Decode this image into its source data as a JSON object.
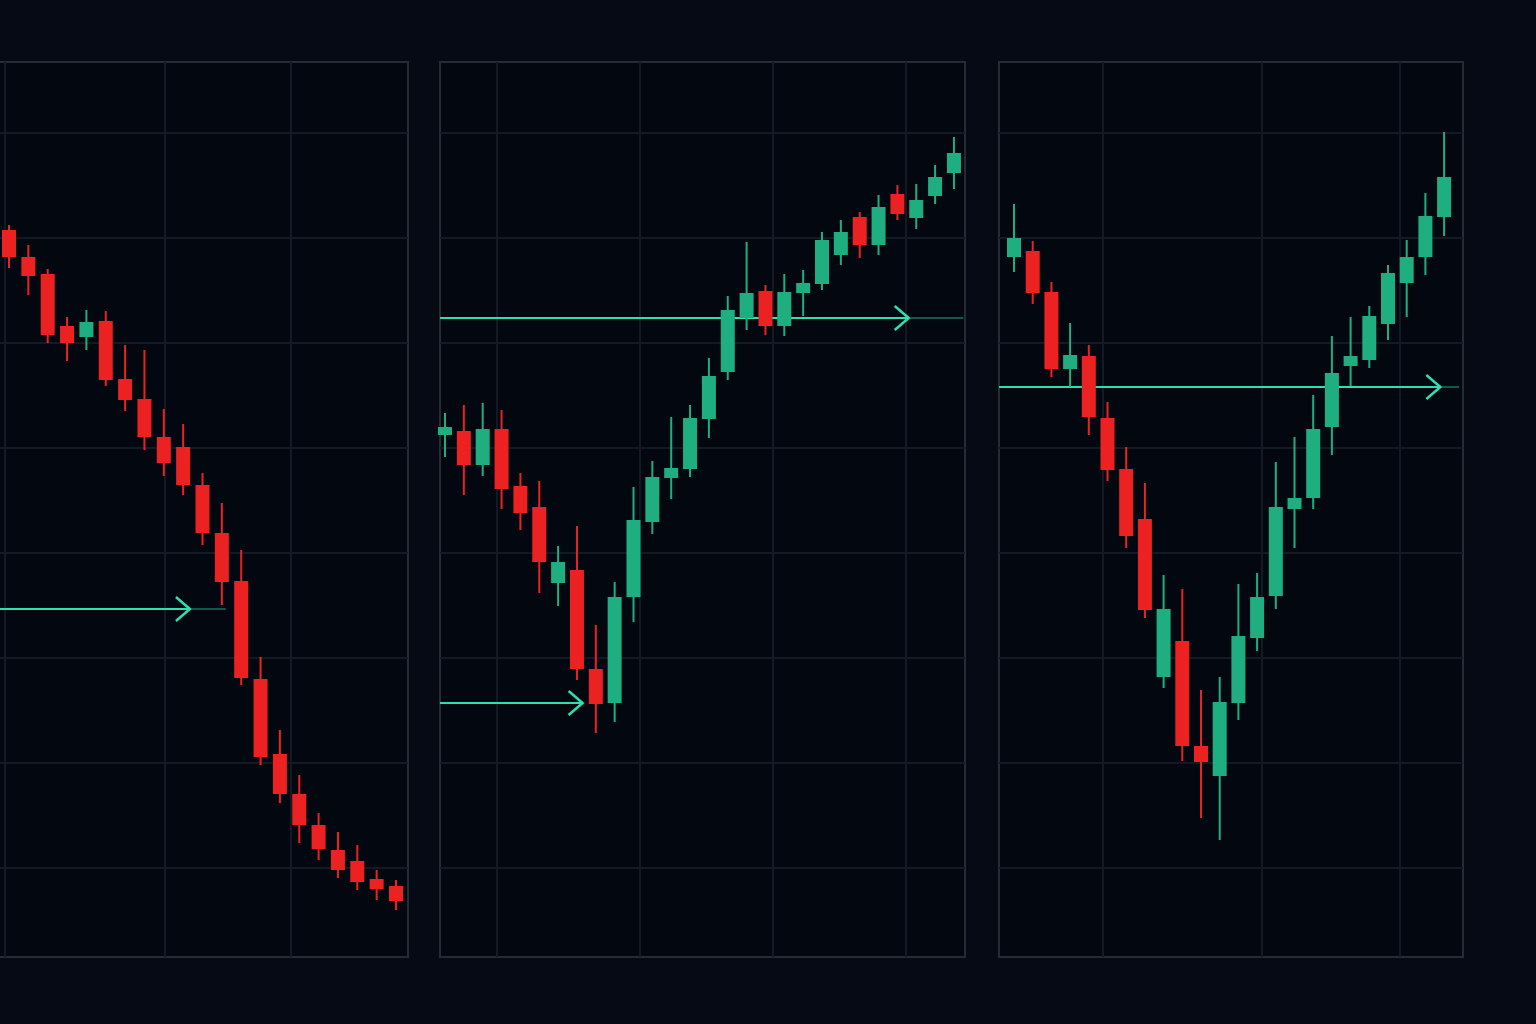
{
  "colors": {
    "background": "#050a14",
    "grid": "#131a25",
    "panel_border": "#262c36",
    "up": "#1fae80",
    "down": "#ec2222",
    "arrow": "#2de0b0"
  },
  "chart_data": [
    {
      "type": "candlestick",
      "title": "",
      "xlabel": "",
      "ylabel": "",
      "ylim": [
        4.3,
        93.8
      ],
      "xlim": [
        -0.47,
        20.6
      ],
      "grid": true,
      "candles": [
        [
          77.0,
          77.5,
          73.2,
          74.3
        ],
        [
          74.3,
          75.5,
          70.5,
          72.4
        ],
        [
          72.6,
          73.1,
          65.7,
          66.5
        ],
        [
          67.4,
          68.3,
          63.9,
          65.7
        ],
        [
          66.3,
          69.0,
          65.0,
          67.8
        ],
        [
          67.9,
          68.9,
          61.4,
          62.0
        ],
        [
          62.1,
          65.5,
          58.9,
          60.0
        ],
        [
          60.1,
          65.0,
          55.0,
          56.3
        ],
        [
          56.3,
          59.1,
          52.4,
          53.7
        ],
        [
          55.3,
          57.6,
          50.5,
          51.5
        ],
        [
          51.5,
          52.7,
          45.5,
          46.7
        ],
        [
          46.7,
          49.7,
          39.5,
          41.8
        ],
        [
          41.9,
          45.0,
          31.5,
          32.2
        ],
        [
          32.1,
          34.3,
          23.5,
          24.3
        ],
        [
          24.6,
          27.0,
          19.7,
          20.6
        ],
        [
          20.6,
          22.5,
          15.7,
          17.5
        ],
        [
          17.5,
          18.7,
          14.0,
          15.1
        ],
        [
          15.0,
          16.8,
          12.2,
          13.0
        ],
        [
          13.9,
          15.5,
          11.0,
          11.8
        ],
        [
          12.1,
          13.0,
          10.0,
          11.1
        ],
        [
          11.4,
          12.0,
          9.0,
          9.9
        ]
      ],
      "arrows": [
        {
          "level": 39.1,
          "from_index": -0.47,
          "head_index": 9.35,
          "to_index": 11.2
        }
      ]
    },
    {
      "type": "candlestick",
      "title": "",
      "xlabel": "",
      "ylabel": "",
      "ylim": [
        4.3,
        93.8
      ],
      "xlim": [
        -0.27,
        27.6
      ],
      "grid": true,
      "candles": [
        [
          56.5,
          58.7,
          54.3,
          57.3
        ],
        [
          56.9,
          59.5,
          50.5,
          53.5
        ],
        [
          53.5,
          59.7,
          52.4,
          57.1
        ],
        [
          57.1,
          59.0,
          49.1,
          51.1
        ],
        [
          51.4,
          52.7,
          47.0,
          48.7
        ],
        [
          49.3,
          51.9,
          40.7,
          43.8
        ],
        [
          41.7,
          45.4,
          39.4,
          43.8
        ],
        [
          43.0,
          47.4,
          32.0,
          33.1
        ],
        [
          33.1,
          37.5,
          26.7,
          29.6
        ],
        [
          29.7,
          41.8,
          27.8,
          40.3
        ],
        [
          40.3,
          51.3,
          37.8,
          48.0
        ],
        [
          47.8,
          53.9,
          46.6,
          52.3
        ],
        [
          52.2,
          58.3,
          50.1,
          53.2
        ],
        [
          53.1,
          59.5,
          52.3,
          58.2
        ],
        [
          58.1,
          64.2,
          56.2,
          62.4
        ],
        [
          62.8,
          70.4,
          62.0,
          69.0
        ],
        [
          68.2,
          75.8,
          67.0,
          70.7
        ],
        [
          70.9,
          71.5,
          66.5,
          67.4
        ],
        [
          67.4,
          72.6,
          66.4,
          70.8
        ],
        [
          70.7,
          73.0,
          68.4,
          71.7
        ],
        [
          71.6,
          76.8,
          71.0,
          76.0
        ],
        [
          74.5,
          78.0,
          73.5,
          76.8
        ],
        [
          78.3,
          78.8,
          74.2,
          75.5
        ],
        [
          75.5,
          80.5,
          74.5,
          79.3
        ],
        [
          80.6,
          81.5,
          78.0,
          78.6
        ],
        [
          78.2,
          81.6,
          77.1,
          80.0
        ],
        [
          80.4,
          83.5,
          79.6,
          82.3
        ],
        [
          82.7,
          86.3,
          81.1,
          84.7
        ]
      ],
      "arrows": [
        {
          "level": 29.7,
          "from_index": -0.27,
          "head_index": 7.3,
          "to_index": 7.3
        },
        {
          "level": 68.2,
          "from_index": -0.27,
          "head_index": 24.6,
          "to_index": 27.5
        }
      ]
    },
    {
      "type": "candlestick",
      "title": "",
      "xlabel": "",
      "ylabel": "",
      "ylim": [
        4.3,
        93.8
      ],
      "xlim": [
        -0.8,
        24.0
      ],
      "grid": true,
      "candles": [
        [
          74.3,
          79.6,
          72.8,
          76.2
        ],
        [
          74.9,
          75.9,
          69.6,
          70.7
        ],
        [
          70.8,
          71.8,
          62.3,
          63.1
        ],
        [
          63.1,
          67.7,
          61.3,
          64.5
        ],
        [
          64.4,
          65.5,
          56.5,
          58.3
        ],
        [
          58.2,
          59.8,
          51.9,
          53.0
        ],
        [
          53.1,
          55.3,
          45.2,
          46.4
        ],
        [
          48.1,
          51.7,
          38.2,
          39.0
        ],
        [
          32.3,
          42.5,
          31.2,
          39.1
        ],
        [
          35.9,
          41.1,
          23.9,
          25.4
        ],
        [
          25.4,
          31.0,
          18.2,
          23.8
        ],
        [
          22.4,
          32.3,
          16.0,
          29.8
        ],
        [
          29.7,
          41.6,
          28.0,
          36.4
        ],
        [
          36.2,
          42.7,
          34.9,
          40.3
        ],
        [
          40.4,
          53.8,
          39.1,
          49.3
        ],
        [
          49.1,
          56.3,
          45.2,
          50.2
        ],
        [
          50.2,
          60.5,
          49.1,
          57.1
        ],
        [
          57.3,
          66.4,
          54.5,
          62.7
        ],
        [
          63.4,
          68.3,
          61.4,
          64.4
        ],
        [
          64.0,
          69.4,
          63.2,
          68.4
        ],
        [
          67.6,
          73.5,
          66.0,
          72.7
        ],
        [
          71.7,
          76.0,
          68.3,
          74.3
        ],
        [
          74.3,
          80.7,
          72.5,
          78.4
        ],
        [
          78.3,
          86.8,
          76.4,
          82.3
        ]
      ],
      "arrows": [
        {
          "level": 61.3,
          "from_index": -0.8,
          "head_index": 22.8,
          "to_index": 23.8
        }
      ]
    }
  ]
}
